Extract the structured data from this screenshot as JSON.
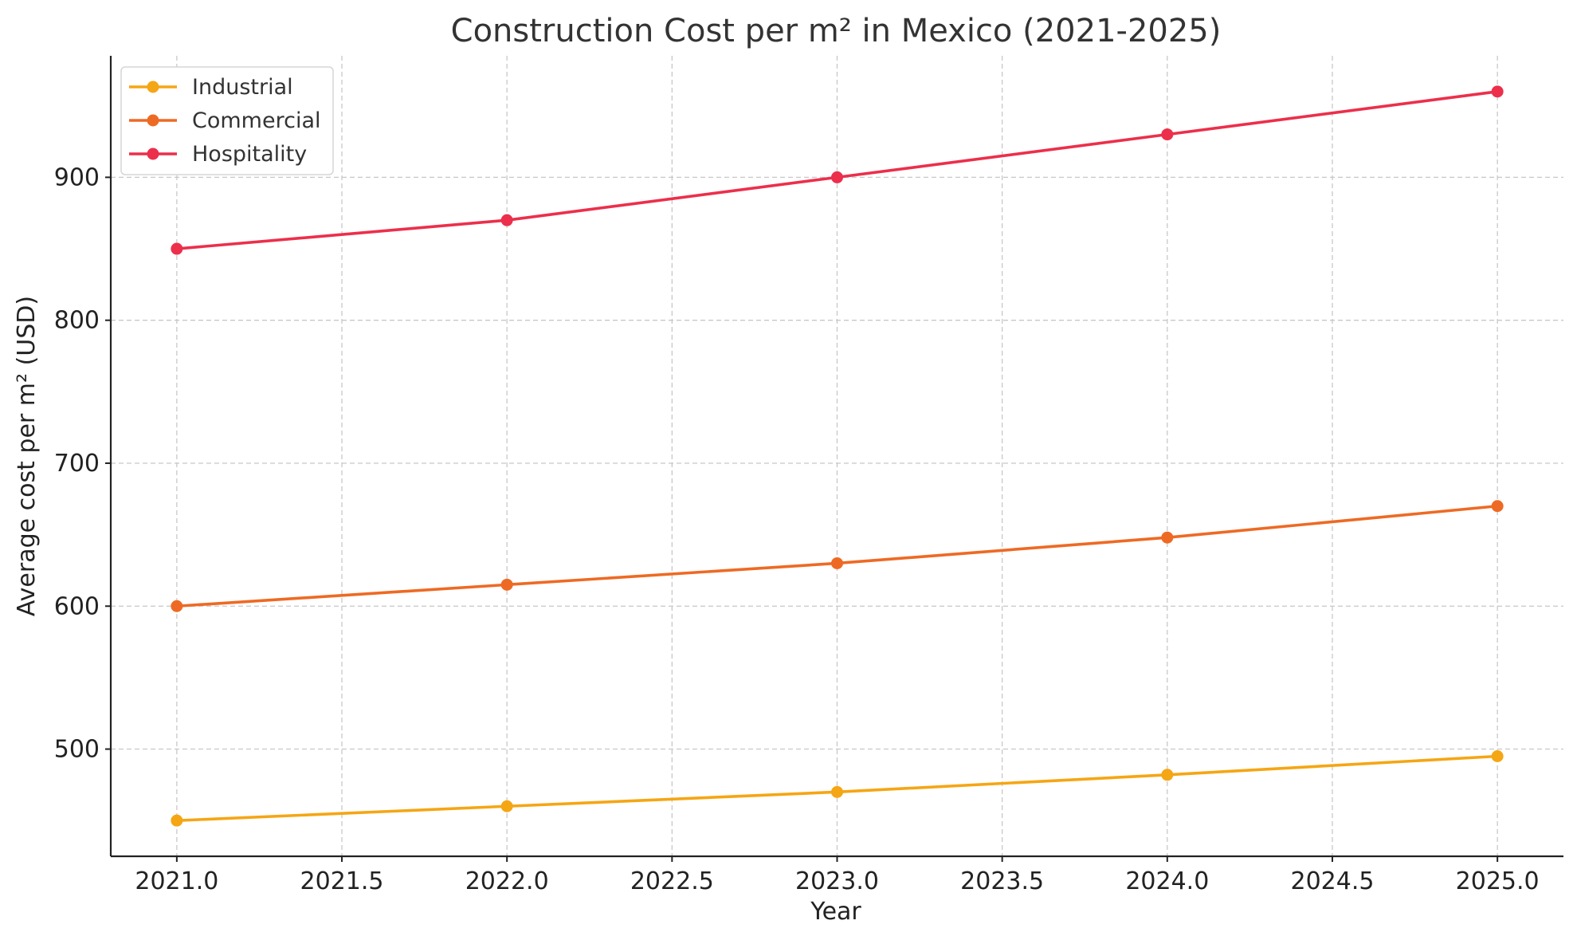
{
  "chart_data": {
    "type": "line",
    "title": "Construction Cost per m² in Mexico (2021-2025)",
    "xlabel": "Year",
    "ylabel": "Average cost per m² (USD)",
    "x": [
      2021,
      2022,
      2023,
      2024,
      2025
    ],
    "xlim": [
      2020.8,
      2025.2
    ],
    "ylim": [
      425,
      985
    ],
    "x_ticks": [
      2021.0,
      2021.5,
      2022.0,
      2022.5,
      2023.0,
      2023.5,
      2024.0,
      2024.5,
      2025.0
    ],
    "x_tick_labels": [
      "2021.0",
      "2021.5",
      "2022.0",
      "2022.5",
      "2023.0",
      "2023.5",
      "2024.0",
      "2024.5",
      "2025.0"
    ],
    "y_ticks": [
      500,
      600,
      700,
      800,
      900
    ],
    "y_tick_labels": [
      "500",
      "600",
      "700",
      "800",
      "900"
    ],
    "grid": true,
    "legend_position": "top-left",
    "series": [
      {
        "name": "Industrial",
        "color": "#F5A614",
        "values": [
          450,
          460,
          470,
          482,
          495
        ]
      },
      {
        "name": "Commercial",
        "color": "#EE6A24",
        "values": [
          600,
          615,
          630,
          648,
          670
        ]
      },
      {
        "name": "Hospitality",
        "color": "#EC2F4B",
        "values": [
          850,
          870,
          900,
          930,
          960
        ]
      }
    ]
  }
}
